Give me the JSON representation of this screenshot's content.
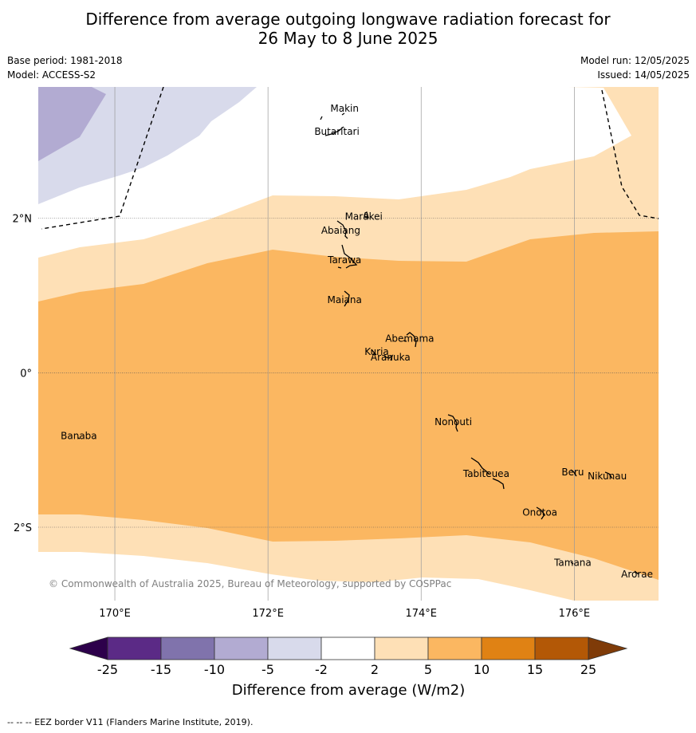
{
  "title_line1": "Difference from average outgoing longwave radiation forecast for",
  "title_line2": "26 May to 8 June 2025",
  "base_period": "Base period: 1981-2018",
  "model": "Model: ACCESS-S2",
  "model_run": "Model run: 12/05/2025",
  "issued": "Issued: 14/05/2025",
  "copyright": "© Commonwealth of Australia 2025, Bureau of Meteorology, supported by COSPPac",
  "footer": "--  --  -- EEZ border V11 (Flanders Marine Institute, 2019).",
  "map": {
    "lon_range": [
      169.0,
      177.1
    ],
    "lat_range": [
      -2.95,
      3.7
    ],
    "lon_ticks": [
      {
        "value": 170,
        "label": "170°E"
      },
      {
        "value": 172,
        "label": "172°E"
      },
      {
        "value": 174,
        "label": "174°E"
      },
      {
        "value": 176,
        "label": "176°E"
      }
    ],
    "lat_ticks": [
      {
        "value": 2,
        "label": "2°N"
      },
      {
        "value": 0,
        "label": "0°"
      },
      {
        "value": -2,
        "label": "2°S"
      }
    ],
    "islands": [
      {
        "name": "Makin",
        "lon": 173.0,
        "lat": 3.38
      },
      {
        "name": "Butaritari",
        "lon": 172.9,
        "lat": 3.08
      },
      {
        "name": "Marakei",
        "lon": 173.25,
        "lat": 1.98
      },
      {
        "name": "Abaiang",
        "lon": 172.95,
        "lat": 1.8
      },
      {
        "name": "Tarawa",
        "lon": 173.0,
        "lat": 1.42
      },
      {
        "name": "Maiana",
        "lon": 173.0,
        "lat": 0.9
      },
      {
        "name": "Abemama",
        "lon": 173.85,
        "lat": 0.4
      },
      {
        "name": "Kuria",
        "lon": 173.42,
        "lat": 0.23
      },
      {
        "name": "Aranuka",
        "lon": 173.6,
        "lat": 0.16
      },
      {
        "name": "Nonouti",
        "lon": 174.42,
        "lat": -0.68
      },
      {
        "name": "Banaba",
        "lon": 169.53,
        "lat": -0.86
      },
      {
        "name": "Tabiteuea",
        "lon": 174.85,
        "lat": -1.35
      },
      {
        "name": "Beru",
        "lon": 175.98,
        "lat": -1.33
      },
      {
        "name": "Nikunau",
        "lon": 176.43,
        "lat": -1.38
      },
      {
        "name": "Onotoa",
        "lon": 175.55,
        "lat": -1.85
      },
      {
        "name": "Tamana",
        "lon": 175.98,
        "lat": -2.5
      },
      {
        "name": "Arorae",
        "lon": 176.82,
        "lat": -2.65
      }
    ]
  },
  "legend": {
    "title": "Difference from average (W/m2)",
    "ticks": [
      "-25",
      "-15",
      "-10",
      "-5",
      "-2",
      "2",
      "5",
      "10",
      "15",
      "25"
    ],
    "colors": [
      "#5b2a86",
      "#8073ac",
      "#b2abd2",
      "#d8daeb",
      "#ffffff",
      "#fee0b6",
      "#fbb761",
      "#e08214",
      "#b35806"
    ],
    "under_color": "#2d004b",
    "over_color": "#7f3b08"
  }
}
